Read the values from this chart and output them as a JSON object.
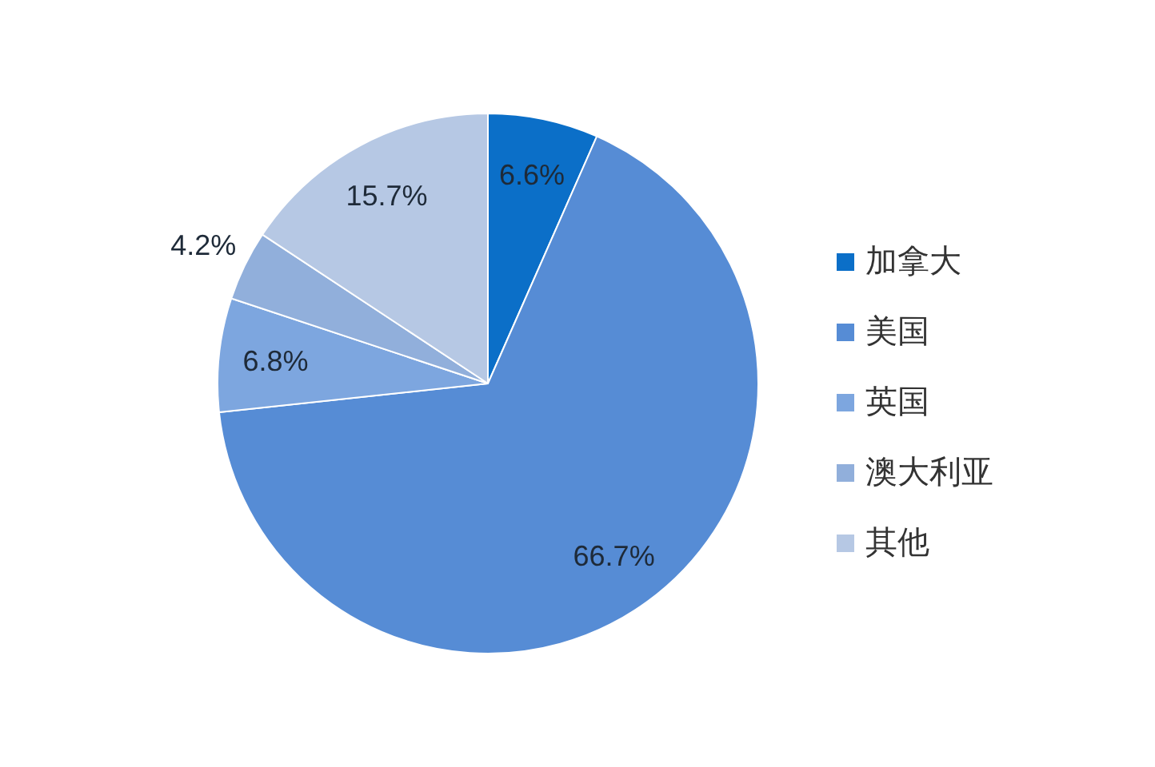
{
  "chart_data": {
    "type": "pie",
    "categories": [
      "加拿大",
      "美国",
      "英国",
      "澳大利亚",
      "其他"
    ],
    "values": [
      6.6,
      66.7,
      6.8,
      4.2,
      15.7
    ],
    "colors": [
      "#0b6fc8",
      "#568cd5",
      "#7da6df",
      "#91afdb",
      "#b6c8e4"
    ],
    "value_labels": [
      "6.6%",
      "66.7%",
      "6.8%",
      "4.2%",
      "15.7%"
    ],
    "legend": "right"
  }
}
